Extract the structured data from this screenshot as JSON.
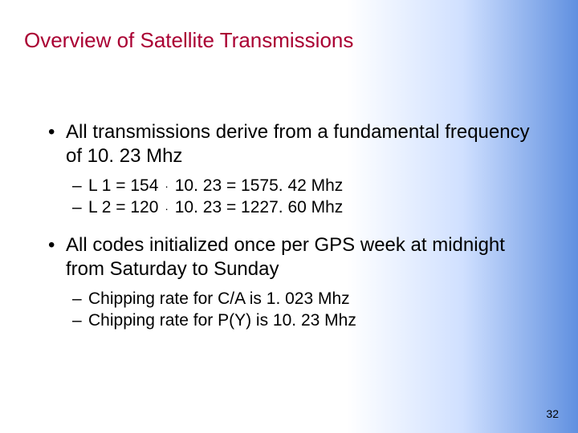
{
  "slide": {
    "title": "Overview of Satellite Transmissions",
    "title_color": "#aa0033",
    "title_font_family": "Comic Sans MS",
    "title_fontsize": 26,
    "body_fontsize": 24,
    "sub_fontsize": 21,
    "text_color": "#000000",
    "background_gradient": {
      "from": "#ffffff",
      "to": "#6090e0",
      "direction": "to right"
    },
    "page_number": "32",
    "bullets": [
      {
        "text": "All transmissions derive from a fundamental frequency of 10. 23 Mhz",
        "subs": [
          {
            "prefix": "L 1 = 154",
            "op": "·",
            "suffix": " 10. 23 = 1575. 42 Mhz"
          },
          {
            "prefix": "L 2 = 120",
            "op": "·",
            "suffix": " 10. 23 = 1227. 60 Mhz"
          }
        ]
      },
      {
        "text": "All codes initialized once per GPS week at midnight from Saturday to Sunday",
        "subs": [
          {
            "prefix": "Chipping rate for C/A is 1. 023 Mhz",
            "op": "",
            "suffix": ""
          },
          {
            "prefix": "Chipping rate for P(Y) is 10. 23 Mhz",
            "op": "",
            "suffix": ""
          }
        ]
      }
    ]
  }
}
